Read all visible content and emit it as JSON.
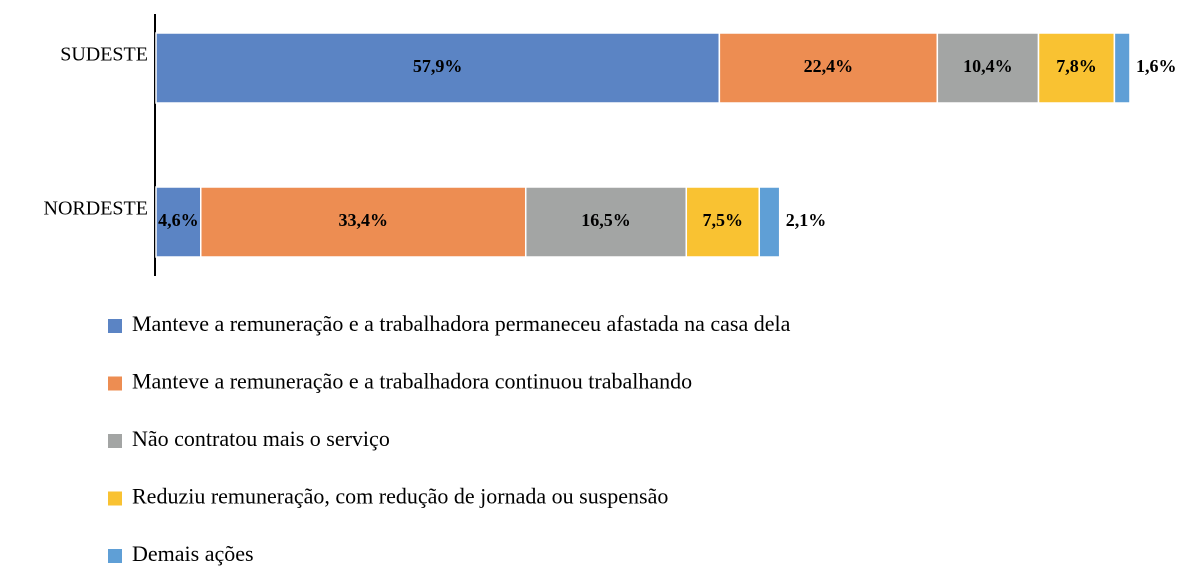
{
  "chart_data": {
    "type": "stacked_barh",
    "categories": [
      "SUDESTE",
      "NORDESTE"
    ],
    "series": [
      {
        "name": "Manteve a remuneração e a trabalhadora permaneceu afastada na casa dela",
        "color": "#5b84c4",
        "values": [
          57.9,
          4.6
        ],
        "value_labels": [
          "57,9%",
          "4,6%"
        ]
      },
      {
        "name": "Manteve a remuneração e a trabalhadora continuou trabalhando",
        "color": "#ed8d52",
        "values": [
          22.4,
          33.4
        ],
        "value_labels": [
          "22,4%",
          "33,4%"
        ]
      },
      {
        "name": "Não contratou mais o serviço",
        "color": "#a3a5a4",
        "values": [
          10.4,
          16.5
        ],
        "value_labels": [
          "10,4%",
          "16,5%"
        ]
      },
      {
        "name": "Reduziu remuneração, com redução de jornada ou suspensão",
        "color": "#f9c232",
        "values": [
          7.8,
          7.5
        ],
        "value_labels": [
          "7,8%",
          "7,5%"
        ]
      },
      {
        "name": "Demais ações",
        "color": "#5f9fd6",
        "values": [
          1.6,
          2.1
        ],
        "value_labels": [
          "1,6%",
          "2,1%"
        ]
      }
    ],
    "xlim": [
      0,
      100
    ],
    "legend": "bottom"
  }
}
